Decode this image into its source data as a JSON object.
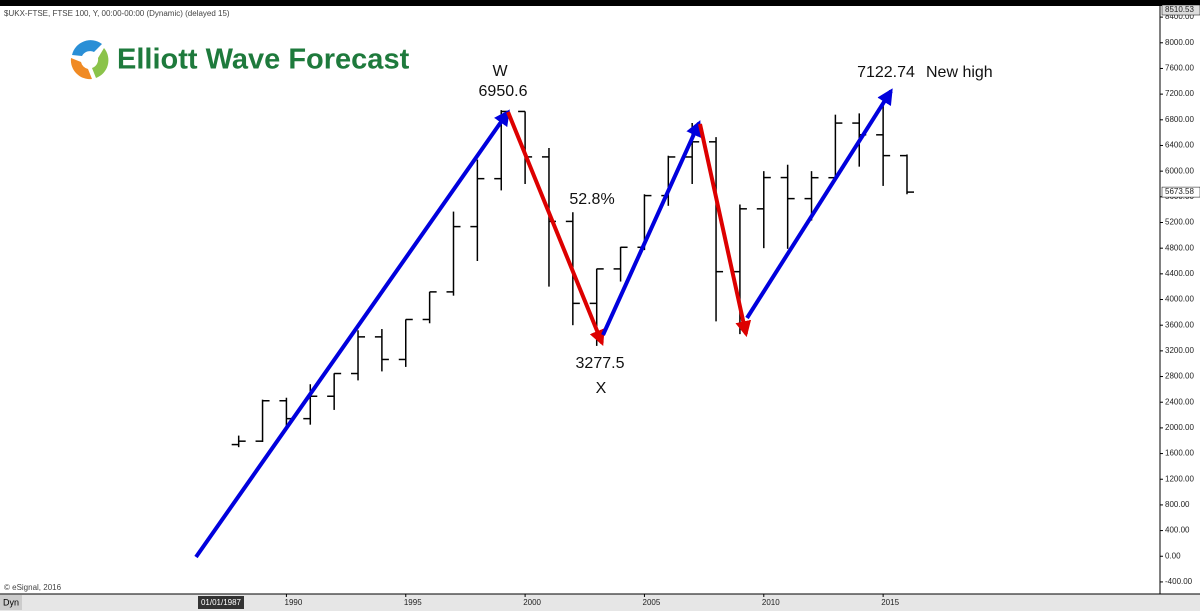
{
  "chart_data": {
    "type": "ohlc",
    "header": "$UKX-FTSE, FTSE 100, Y, 00:00-00:00 (Dynamic) (delayed 15)",
    "logo": "Elliott Wave Forecast",
    "watermark": "© eSignal, 2016",
    "mode": "Dyn",
    "cursor_label": "01/01/1987",
    "annotations": [
      "W",
      "6950.6",
      "52.8%",
      "3277.5",
      "X",
      "7122.74",
      "New high"
    ],
    "color": "#000000",
    "x": [
      1988,
      1989,
      1990,
      1991,
      1992,
      1993,
      1994,
      1995,
      1996,
      1997,
      1998,
      1999,
      2000,
      2001,
      2002,
      2003,
      2004,
      2005,
      2006,
      2007,
      2008,
      2009,
      2010,
      2011,
      2012,
      2013,
      2014,
      2015,
      2016
    ],
    "open": [
      1740,
      1793,
      2423,
      2144,
      2493,
      2847,
      3418,
      3066,
      3689,
      4119,
      5136,
      5883,
      6930,
      6222,
      5217,
      3940,
      4477,
      4814,
      5619,
      6221,
      6457,
      4434,
      5413,
      5900,
      5572,
      5898,
      6749,
      6566,
      6242
    ],
    "high": [
      1880,
      2440,
      2470,
      2680,
      2850,
      3520,
      3540,
      3690,
      4120,
      5370,
      6180,
      6950.6,
      6930,
      6360,
      5360,
      4480,
      4820,
      5640,
      6240,
      6750,
      6530,
      5480,
      6000,
      6100,
      6000,
      6880,
      6900,
      7122.74,
      6260
    ],
    "low": [
      1700,
      1780,
      1990,
      2050,
      2280,
      2740,
      2880,
      2950,
      3630,
      4060,
      4600,
      5700,
      5800,
      4200,
      3600,
      3277.5,
      4280,
      4770,
      5460,
      5800,
      3660,
      3460,
      4800,
      4790,
      5230,
      5900,
      6070,
      5770,
      5640
    ],
    "close": [
      1793,
      2423,
      2144,
      2493,
      2847,
      3418,
      3066,
      3689,
      4119,
      5136,
      5883,
      6930,
      6222,
      5217,
      3940,
      4477,
      4814,
      5619,
      6221,
      6457,
      4434,
      5413,
      5900,
      5572,
      5898,
      6749,
      6566,
      6242,
      5673.58
    ],
    "xlim": [
      1978,
      2026.6
    ],
    "ylim": [
      -588,
      8573
    ],
    "xticks": [
      1990,
      1995,
      2000,
      2005,
      2010,
      2015
    ],
    "yticks": [
      {
        "value": -400,
        "label": "-400.00"
      },
      {
        "value": 0,
        "label": "0.00"
      },
      {
        "value": 400,
        "label": "400.00"
      },
      {
        "value": 800,
        "label": "800.00"
      },
      {
        "value": 1200,
        "label": "1200.00"
      },
      {
        "value": 1600,
        "label": "1600.00"
      },
      {
        "value": 2000,
        "label": "2000.00"
      },
      {
        "value": 2400,
        "label": "2400.00"
      },
      {
        "value": 2800,
        "label": "2800.00"
      },
      {
        "value": 3200,
        "label": "3200.00"
      },
      {
        "value": 3600,
        "label": "3600.00"
      },
      {
        "value": 4000,
        "label": "4000.00"
      },
      {
        "value": 4400,
        "label": "4400.00"
      },
      {
        "value": 4800,
        "label": "4800.00"
      },
      {
        "value": 5200,
        "label": "5200.00"
      },
      {
        "value": 5600,
        "label": "5600.00"
      },
      {
        "value": 6000,
        "label": "6000.00"
      },
      {
        "value": 6400,
        "label": "6400.00"
      },
      {
        "value": 6800,
        "label": "6800.00"
      },
      {
        "value": 7200,
        "label": "7200.00"
      },
      {
        "value": 7600,
        "label": "7600.00"
      },
      {
        "value": 8000,
        "label": "8000.00"
      },
      {
        "value": 8400,
        "label": "8400.00"
      }
    ],
    "price_labels": [
      8510.53,
      5673.58
    ]
  }
}
